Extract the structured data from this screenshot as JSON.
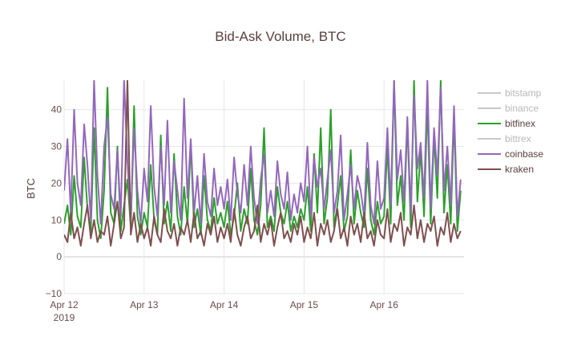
{
  "chart_data": {
    "type": "line",
    "title": "Bid-Ask Volume, BTC",
    "xlabel": "",
    "ylabel": "BTC",
    "x_start": "2019-04-12T00:00",
    "x_end": "2019-04-16T23:00",
    "xlim": [
      "2019-04-12T00:00",
      "2019-04-17T00:00"
    ],
    "ylim": [
      -10,
      48
    ],
    "x_tick_labels": [
      {
        "date": "2019-04-12",
        "label": "Apr 12",
        "sublabel": "2019"
      },
      {
        "date": "2019-04-13",
        "label": "Apr 13",
        "sublabel": ""
      },
      {
        "date": "2019-04-14",
        "label": "Apr 14",
        "sublabel": ""
      },
      {
        "date": "2019-04-15",
        "label": "Apr 15",
        "sublabel": ""
      },
      {
        "date": "2019-04-16",
        "label": "Apr 16",
        "sublabel": ""
      }
    ],
    "y_ticks": [
      -10,
      0,
      10,
      20,
      30,
      40
    ],
    "grid": true,
    "legend_position": "right",
    "series": [
      {
        "name": "bitstamp",
        "color": "#bdbdbd",
        "visible": false,
        "values": []
      },
      {
        "name": "binance",
        "color": "#bdbdbd",
        "visible": false,
        "values": []
      },
      {
        "name": "bitfinex",
        "color": "#2ca02c",
        "visible": true,
        "values": [
          9,
          14,
          6,
          22,
          11,
          8,
          27,
          13,
          7,
          35,
          10,
          5,
          18,
          46,
          12,
          9,
          30,
          7,
          14,
          21,
          8,
          41,
          11,
          6,
          12,
          8,
          25,
          10,
          6,
          33,
          9,
          15,
          7,
          28,
          11,
          6,
          19,
          9,
          31,
          8,
          13,
          6,
          22,
          10,
          7,
          16,
          9,
          12,
          8,
          15,
          6,
          11,
          20,
          7,
          13,
          9,
          24,
          10,
          6,
          14,
          35,
          8,
          11,
          7,
          19,
          12,
          9,
          15,
          7,
          11,
          8,
          13,
          10,
          19,
          7,
          28,
          12,
          35,
          9,
          16,
          40,
          8,
          14,
          22,
          7,
          11,
          29,
          9,
          18,
          12,
          8,
          24,
          10,
          6,
          15,
          9,
          11,
          30,
          9,
          48,
          14,
          22,
          10,
          37,
          8,
          48,
          15,
          29,
          11,
          42,
          9,
          33,
          16,
          48,
          12,
          25,
          9,
          38,
          7,
          18
        ]
      },
      {
        "name": "bittrex",
        "color": "#bdbdbd",
        "visible": false,
        "values": []
      },
      {
        "name": "coinbase",
        "color": "#9467bd",
        "visible": true,
        "values": [
          18,
          32,
          12,
          40,
          20,
          14,
          36,
          25,
          10,
          48,
          22,
          9,
          30,
          38,
          17,
          13,
          29,
          11,
          48,
          26,
          10,
          35,
          18,
          9,
          24,
          15,
          41,
          19,
          11,
          30,
          14,
          37,
          12,
          26,
          18,
          10,
          43,
          16,
          32,
          12,
          22,
          9,
          28,
          15,
          11,
          24,
          14,
          19,
          13,
          21,
          10,
          27,
          17,
          12,
          25,
          14,
          30,
          16,
          9,
          21,
          28,
          12,
          18,
          11,
          26,
          17,
          13,
          23,
          10,
          17,
          12,
          20,
          15,
          30,
          11,
          27,
          19,
          24,
          13,
          21,
          29,
          12,
          18,
          33,
          10,
          17,
          25,
          13,
          22,
          18,
          11,
          31,
          14,
          9,
          26,
          13,
          16,
          35,
          14,
          48,
          21,
          29,
          15,
          38,
          12,
          44,
          24,
          31,
          16,
          48,
          13,
          35,
          22,
          46,
          18,
          30,
          14,
          41,
          11,
          21
        ]
      },
      {
        "name": "kraken",
        "color": "#7f4f4f",
        "visible": true,
        "values": [
          6,
          4,
          12,
          5,
          8,
          3,
          9,
          14,
          5,
          10,
          4,
          7,
          6,
          11,
          3,
          9,
          15,
          5,
          8,
          48,
          6,
          12,
          4,
          9,
          5,
          8,
          3,
          11,
          6,
          4,
          13,
          7,
          5,
          9,
          3,
          8,
          6,
          10,
          4,
          12,
          5,
          7,
          3,
          9,
          6,
          11,
          4,
          8,
          5,
          9,
          4,
          13,
          6,
          3,
          8,
          11,
          5,
          7,
          14,
          4,
          9,
          6,
          10,
          3,
          8,
          12,
          5,
          7,
          4,
          9,
          6,
          11,
          4,
          8,
          5,
          12,
          3,
          9,
          6,
          10,
          4,
          7,
          13,
          5,
          8,
          3,
          11,
          6,
          9,
          4,
          12,
          5,
          7,
          3,
          10,
          6,
          5,
          13,
          4,
          9,
          7,
          12,
          3,
          8,
          6,
          14,
          5,
          10,
          4,
          9,
          7,
          11,
          3,
          8,
          6,
          12,
          4,
          9,
          5,
          7
        ]
      }
    ]
  }
}
